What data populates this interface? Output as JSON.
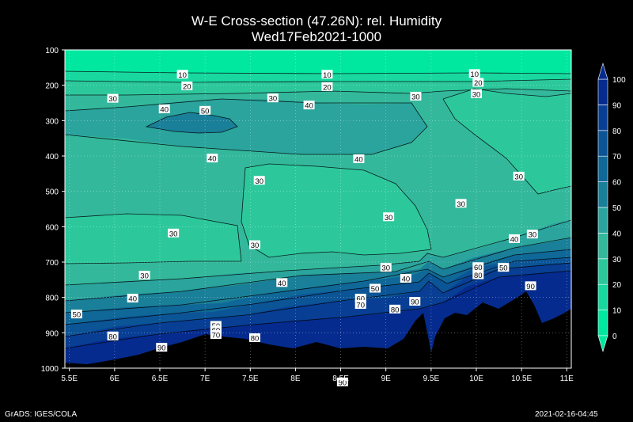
{
  "header": {
    "title": "W-E Cross-section (47.26N): rel. Humidity",
    "subtitle": "Wed17Feb2021-1000"
  },
  "footer": {
    "credit": "GrADS: IGES/COLA",
    "timestamp": "2021-02-16-04:45"
  },
  "chart_data": {
    "type": "heatmap",
    "title": "W-E Cross-section (47.26N): rel. Humidity",
    "subtitle": "Wed17Feb2021-1000",
    "x_ticks": [
      "5.5E",
      "6E",
      "6.5E",
      "7E",
      "7.5E",
      "8E",
      "8.5E",
      "9E",
      "9.5E",
      "10E",
      "10.5E",
      "11E"
    ],
    "x_values": [
      5.5,
      6,
      6.5,
      7,
      7.5,
      8,
      8.5,
      9,
      9.5,
      10,
      10.5,
      11
    ],
    "y_ticks": [
      "100",
      "200",
      "300",
      "400",
      "500",
      "600",
      "700",
      "800",
      "900",
      "1000"
    ],
    "y_values": [
      100,
      200,
      300,
      400,
      500,
      600,
      700,
      800,
      900,
      1000
    ],
    "xlim": [
      5.45,
      11.05
    ],
    "ylim": [
      1000,
      100
    ],
    "grid": true,
    "colorbar": {
      "levels": [
        0,
        10,
        20,
        30,
        40,
        50,
        60,
        70,
        80,
        90,
        100
      ],
      "labels": [
        "0",
        "10",
        "20",
        "30",
        "40",
        "50",
        "60",
        "70",
        "80",
        "90",
        "100"
      ],
      "colors": [
        "#00e8a0",
        "#18d8a0",
        "#2cc89c",
        "#33b89c",
        "#2aa49c",
        "#1a7f98",
        "#0f6898",
        "#0b5496",
        "#083e94",
        "#052b8e"
      ]
    },
    "contour_labels": [
      {
        "text": "10",
        "lon": 6.75,
        "p": 170
      },
      {
        "text": "10",
        "lon": 8.35,
        "p": 170
      },
      {
        "text": "10",
        "lon": 9.98,
        "p": 168
      },
      {
        "text": "20",
        "lon": 6.8,
        "p": 203
      },
      {
        "text": "20",
        "lon": 8.35,
        "p": 205
      },
      {
        "text": "20",
        "lon": 10.02,
        "p": 193
      },
      {
        "text": "30",
        "lon": 5.98,
        "p": 238
      },
      {
        "text": "30",
        "lon": 7.75,
        "p": 237
      },
      {
        "text": "30",
        "lon": 9.33,
        "p": 232
      },
      {
        "text": "30",
        "lon": 10,
        "p": 225
      },
      {
        "text": "40",
        "lon": 6.55,
        "p": 268
      },
      {
        "text": "40",
        "lon": 8.15,
        "p": 257
      },
      {
        "text": "50",
        "lon": 7,
        "p": 272
      },
      {
        "text": "40",
        "lon": 7.08,
        "p": 407
      },
      {
        "text": "40",
        "lon": 8.7,
        "p": 409
      },
      {
        "text": "30",
        "lon": 7.6,
        "p": 470
      },
      {
        "text": "30",
        "lon": 10.47,
        "p": 458
      },
      {
        "text": "30",
        "lon": 9.83,
        "p": 535
      },
      {
        "text": "30",
        "lon": 9.03,
        "p": 573
      },
      {
        "text": "30",
        "lon": 6.65,
        "p": 619
      },
      {
        "text": "40",
        "lon": 10.42,
        "p": 635
      },
      {
        "text": "30",
        "lon": 10.62,
        "p": 622
      },
      {
        "text": "30",
        "lon": 7.55,
        "p": 652
      },
      {
        "text": "30",
        "lon": 9,
        "p": 716
      },
      {
        "text": "30",
        "lon": 6.33,
        "p": 738
      },
      {
        "text": "60",
        "lon": 10.02,
        "p": 714
      },
      {
        "text": "50",
        "lon": 10.3,
        "p": 716
      },
      {
        "text": "80",
        "lon": 10.02,
        "p": 737
      },
      {
        "text": "40",
        "lon": 9.22,
        "p": 747
      },
      {
        "text": "40",
        "lon": 7.85,
        "p": 759
      },
      {
        "text": "90",
        "lon": 10.6,
        "p": 768
      },
      {
        "text": "50",
        "lon": 8.88,
        "p": 775
      },
      {
        "text": "40",
        "lon": 6.2,
        "p": 803
      },
      {
        "text": "60",
        "lon": 8.72,
        "p": 803
      },
      {
        "text": "70",
        "lon": 8.72,
        "p": 821
      },
      {
        "text": "90",
        "lon": 9.32,
        "p": 812
      },
      {
        "text": "80",
        "lon": 9.1,
        "p": 834
      },
      {
        "text": "50",
        "lon": 5.58,
        "p": 848
      },
      {
        "text": "50",
        "lon": 7.12,
        "p": 880
      },
      {
        "text": "60",
        "lon": 7.12,
        "p": 893
      },
      {
        "text": "70",
        "lon": 7.12,
        "p": 906
      },
      {
        "text": "80",
        "lon": 5.98,
        "p": 910
      },
      {
        "text": "80",
        "lon": 7.55,
        "p": 915
      },
      {
        "text": "90",
        "lon": 6.52,
        "p": 942
      },
      {
        "text": "90",
        "lon": 8.52,
        "p": 1040
      }
    ],
    "terrain_color": "#000000"
  }
}
